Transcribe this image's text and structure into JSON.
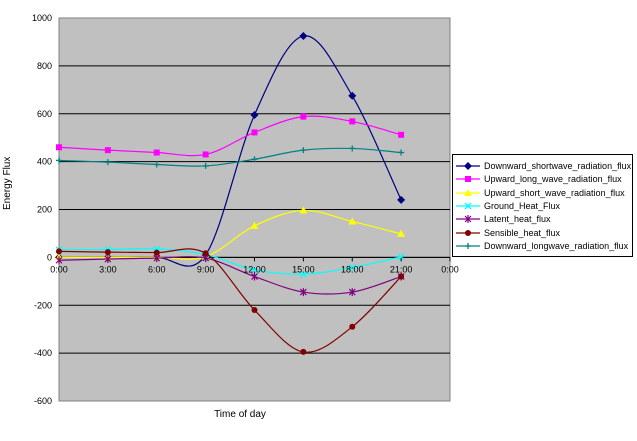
{
  "chart_data": {
    "type": "line",
    "title": "",
    "xlabel": "Time of day",
    "ylabel": "Energy Flux",
    "x_tick_labels": [
      "0:00",
      "3:00",
      "6:00",
      "9:00",
      "12:00",
      "15:00",
      "18:00",
      "21:00",
      "0:00"
    ],
    "y_tick_labels": [
      "1000",
      "800",
      "600",
      "400",
      "200",
      "0",
      "-200",
      "-400",
      "-600"
    ],
    "ylim": [
      -600,
      1000
    ],
    "xlim_hours": [
      0,
      24
    ],
    "grid": true,
    "legend_position": "right",
    "x": [
      "0:00",
      "3:00",
      "6:00",
      "9:00",
      "12:00",
      "15:00",
      "18:00",
      "21:00"
    ],
    "series": [
      {
        "name": "Downward_shortwave_radiation_flux",
        "color": "#000080",
        "marker": "diamond",
        "values": [
          0,
          0,
          0,
          10,
          595,
          925,
          675,
          240
        ]
      },
      {
        "name": "Upward_long_wave_radiation_flux",
        "color": "#ff00ff",
        "marker": "square",
        "values": [
          460,
          448,
          438,
          430,
          522,
          588,
          568,
          512
        ]
      },
      {
        "name": "Upward_short_wave_radiation_flux",
        "color": "#ffff00",
        "marker": "triangle",
        "values": [
          0,
          0,
          0,
          3,
          132,
          196,
          150,
          98
        ]
      },
      {
        "name": "Ground_Heat_Flux",
        "color": "#00ffff",
        "marker": "x",
        "values": [
          32,
          33,
          35,
          12,
          -52,
          -70,
          -42,
          2
        ]
      },
      {
        "name": "Latent_heat_flux",
        "color": "#800080",
        "marker": "star",
        "values": [
          -12,
          -7,
          -3,
          -3,
          -80,
          -145,
          -145,
          -80
        ]
      },
      {
        "name": "Sensible_heat_flux",
        "color": "#800000",
        "marker": "circle",
        "values": [
          25,
          22,
          20,
          17,
          -220,
          -395,
          -290,
          -80
        ]
      },
      {
        "name": "Downward_longwave_radiation_flux",
        "color": "#008080",
        "marker": "plus",
        "values": [
          405,
          398,
          388,
          382,
          410,
          448,
          455,
          438
        ]
      }
    ]
  }
}
